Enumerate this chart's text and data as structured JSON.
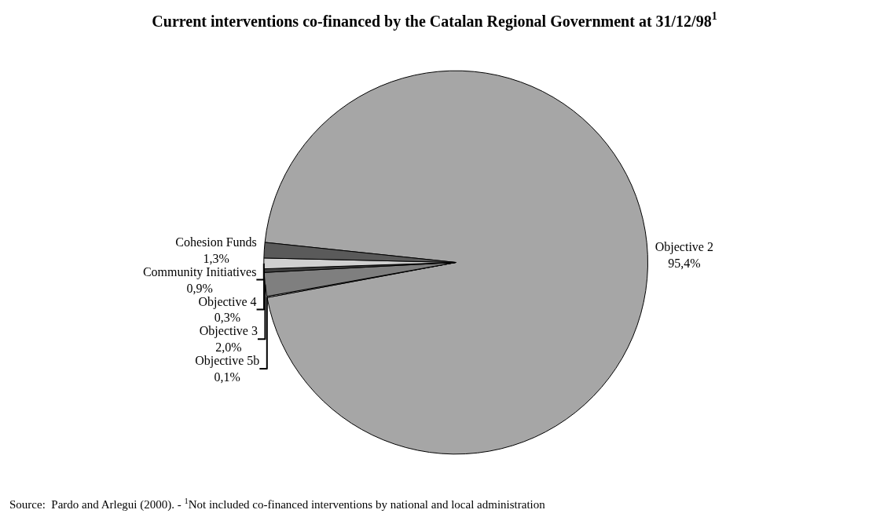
{
  "chart_data": {
    "type": "pie",
    "title": "Current interventions co-financed by the Catalan Regional Government at 31/12/98$^{1}$",
    "categories": [
      "Objective 2",
      "Objective 5b",
      "Objective 3",
      "Objective 4",
      "Community Initiatives",
      "Cohesion Funds"
    ],
    "values": [
      95.4,
      0.1,
      2.0,
      0.3,
      0.9,
      1.3
    ],
    "value_labels": [
      "95,4%",
      "0,1%",
      "2,0%",
      "0,3%",
      "0,9%",
      "1,3%"
    ],
    "colors": [
      "#a6a6a6",
      "#e6e6e6",
      "#7f7f7f",
      "#404040",
      "#d0d0d0",
      "#5a5a5a"
    ],
    "legend": false,
    "annotations": [
      "Source:  Pardo and Arlegui (2000). - $^{1}$Not included co-financed interventions by national and local administration"
    ]
  }
}
